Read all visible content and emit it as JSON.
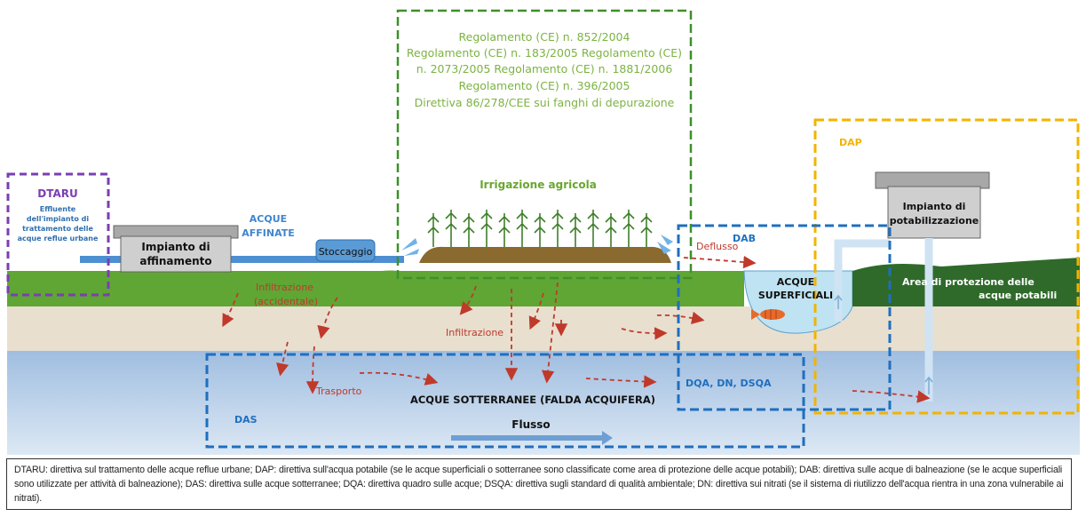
{
  "regulations": {
    "line1": "Regolamento (CE) n. 852/2004",
    "line2": "Regolamento (CE) n. 183/2005 Regolamento (CE)",
    "line3": "n. 2073/2005 Regolamento (CE) n. 1881/2006",
    "line4": "Regolamento (CE) n. 396/2005",
    "line5": "Direttiva 86/278/CEE sui fanghi di depurazione"
  },
  "dtaru": {
    "title": "DTARU",
    "line1": "Effluente",
    "line2": "dell'impianto di",
    "line3": "trattamento delle",
    "line4": "acque reflue urbane"
  },
  "plant": {
    "line1": "Impianto di",
    "line2": "affinamento"
  },
  "reclaimed": {
    "line1": "ACQUE",
    "line2": "AFFINATE"
  },
  "storage": "Stoccaggio",
  "irrigation": "Irrigazione agricola",
  "potable_plant": {
    "line1": "Impianto di",
    "line2": "potabilizzazione"
  },
  "dap": "DAP",
  "dab": "DAB",
  "runoff": "Deflusso",
  "surface": {
    "line1": "ACQUE",
    "line2": "SUPERFICIALI"
  },
  "protection": {
    "line1": "Area di protezione delle",
    "line2": "acque potabili"
  },
  "infiltration_acc": {
    "line1": "Infiltrazione",
    "line2": "(accidentale)"
  },
  "infiltration": "Infiltrazione",
  "transport": "Trasporto",
  "groundwater": "ACQUE SOTTERRANEE (FALDA ACQUIFERA)",
  "flow": "Flusso",
  "das": "DAS",
  "dqa": "DQA, DN, DSQA",
  "caption": "DTARU: direttiva sul trattamento delle acque reflue urbane; DAP: direttiva sull'acqua potabile (se le acque superficiali o sotterranee sono classificate come area di protezione delle acque potabili); DAB: direttiva sulle acque di balneazione (se le acque superficiali sono utilizzate per attività di balneazione); DAS: direttiva sulle acque sotterranee; DQA: direttiva quadro sulle acque; DSQA: direttiva sugli standard di qualità ambientale; DN: direttiva sui nitrati (se il sistema di riutilizzo dell'acqua rientra in una zona vulnerabile ai nitrati).",
  "colors": {
    "grass": "#5aa02c",
    "soil": "#e6dccb",
    "groundwater": "#a9c4e3",
    "label_red": "#c0392b",
    "label_blue": "#2f6fb0",
    "reg_green": "#7cb342",
    "dtaru_purple": "#7a3fb0",
    "dap_yellow": "#f2b400",
    "das_blue": "#1f6fbf"
  }
}
